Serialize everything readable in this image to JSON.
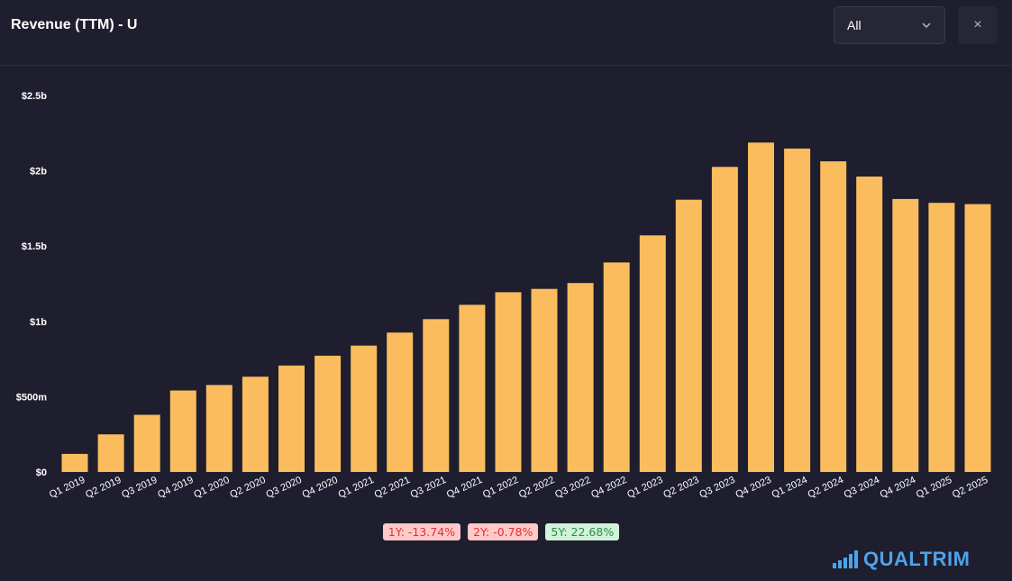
{
  "header": {
    "title": "Revenue (TTM) - U",
    "period_select": {
      "value": "All"
    },
    "close_label": "×"
  },
  "colors": {
    "background": "#1e1e2e",
    "bar": "#fbbc5d",
    "axis_text": "#ffffff"
  },
  "chart_data": {
    "type": "bar",
    "title": "Revenue (TTM) - U",
    "xlabel": "",
    "ylabel": "",
    "ylim": [
      0,
      2500000000
    ],
    "yticks": [
      0,
      500000000,
      1000000000,
      1500000000,
      2000000000,
      2500000000
    ],
    "ytick_labels": [
      "$0",
      "$500m",
      "$1b",
      "$1.5b",
      "$2b",
      "$2.5b"
    ],
    "grid": false,
    "categories": [
      "Q1 2019",
      "Q2 2019",
      "Q3 2019",
      "Q4 2019",
      "Q1 2020",
      "Q2 2020",
      "Q3 2020",
      "Q4 2020",
      "Q1 2021",
      "Q2 2021",
      "Q3 2021",
      "Q4 2021",
      "Q1 2022",
      "Q2 2022",
      "Q3 2022",
      "Q4 2022",
      "Q1 2023",
      "Q2 2023",
      "Q3 2023",
      "Q4 2023",
      "Q1 2024",
      "Q2 2024",
      "Q3 2024",
      "Q4 2024",
      "Q1 2025",
      "Q2 2025"
    ],
    "values": [
      120000000,
      250000000,
      380000000,
      541000000,
      578000000,
      633000000,
      707000000,
      772000000,
      839000000,
      926000000,
      1015000000,
      1110000000,
      1194000000,
      1216000000,
      1255000000,
      1391000000,
      1571000000,
      1808000000,
      2026000000,
      2187000000,
      2148000000,
      2063000000,
      1962000000,
      1813000000,
      1787000000,
      1779000000
    ]
  },
  "badges": [
    {
      "label": "1Y: -13.74%",
      "trend": "negative"
    },
    {
      "label": "2Y: -0.78%",
      "trend": "negative"
    },
    {
      "label": "5Y: 22.68%",
      "trend": "positive"
    }
  ],
  "branding": {
    "logo_text": "QUALTRIM",
    "logo_icon": "bar-chart-icon"
  }
}
